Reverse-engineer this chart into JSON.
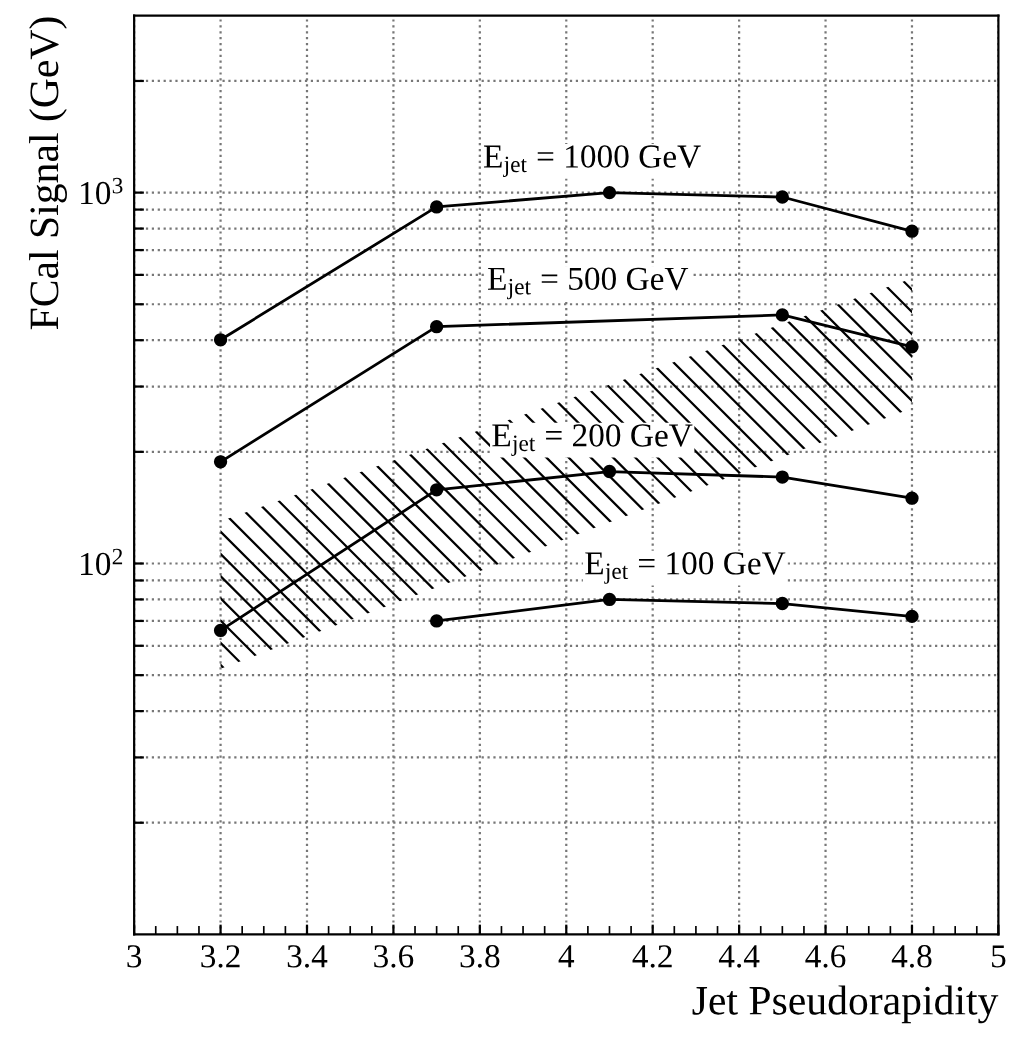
{
  "chart_data": {
    "type": "line",
    "xlabel": "Jet Pseudorapidity",
    "ylabel": "FCal Signal (GeV)",
    "log": "y",
    "grid": true,
    "xlim": [
      3,
      5
    ],
    "ylim": [
      10,
      3000
    ],
    "xticks": [
      3,
      3.2,
      3.4,
      3.6,
      3.8,
      4,
      4.2,
      4.4,
      4.6,
      4.8,
      5
    ],
    "yticks": [
      {
        "value": 20,
        "label": null
      },
      {
        "value": 30,
        "label": null
      },
      {
        "value": 40,
        "label": null
      },
      {
        "value": 50,
        "label": null
      },
      {
        "value": 60,
        "label": null
      },
      {
        "value": 70,
        "label": null
      },
      {
        "value": 80,
        "label": null
      },
      {
        "value": 90,
        "label": null
      },
      {
        "value": 100,
        "label": "10$^{2}$"
      },
      {
        "value": 200,
        "label": null
      },
      {
        "value": 300,
        "label": null
      },
      {
        "value": 400,
        "label": null
      },
      {
        "value": 500,
        "label": null
      },
      {
        "value": 600,
        "label": null
      },
      {
        "value": 700,
        "label": null
      },
      {
        "value": 800,
        "label": null
      },
      {
        "value": 900,
        "label": null
      },
      {
        "value": 1000,
        "label": "10$^{3}$"
      },
      {
        "value": 2000,
        "label": null
      }
    ],
    "series": [
      {
        "type": "area",
        "color": "#000000",
        "x": [
          3.2,
          4.8
        ],
        "values": [
          null,
          null
        ],
        "lower": [
          52,
          262
        ],
        "upper": [
          130,
          587
        ]
      },
      {
        "name": "E$_{jet}$ = 1000 GeV",
        "color": "#000000",
        "marker": "circle",
        "x": [
          3.2,
          3.7,
          4.1,
          4.5,
          4.8
        ],
        "values": [
          401,
          915,
          1000,
          973,
          787
        ]
      },
      {
        "name": "E$_{jet}$ = 500 GeV",
        "color": "#000000",
        "marker": "circle",
        "x": [
          3.2,
          3.7,
          4.5,
          4.8
        ],
        "values": [
          188,
          435,
          468,
          384
        ]
      },
      {
        "name": "E$_{jet}$ = 200 GeV",
        "color": "#000000",
        "marker": "circle",
        "x": [
          3.2,
          3.7,
          4.1,
          4.5,
          4.8
        ],
        "values": [
          66,
          158,
          177,
          171,
          150
        ]
      },
      {
        "name": "E$_{jet}$ = 100 GeV",
        "color": "#000000",
        "marker": "circle",
        "x": [
          3.7,
          4.1,
          4.5,
          4.8
        ],
        "values": [
          70,
          80,
          78,
          72
        ]
      }
    ]
  }
}
